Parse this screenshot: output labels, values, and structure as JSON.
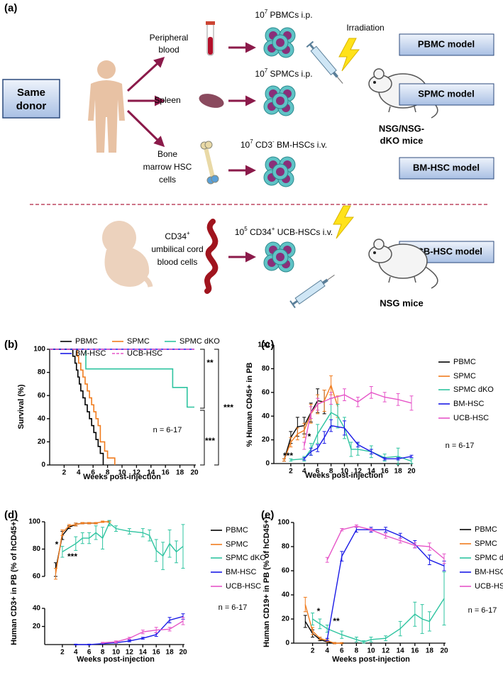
{
  "panel_labels": [
    "(a)",
    "(b)",
    "(c)",
    "(d)",
    "(e)"
  ],
  "diagram": {
    "donor": [
      "Same",
      "donor"
    ],
    "sources": [
      [
        "Peripheral",
        "blood"
      ],
      [
        "Spleen"
      ],
      [
        "Bone",
        "marrow HSC",
        "cells"
      ]
    ],
    "doses": [
      [
        "10",
        "7",
        " PBMCs i.p."
      ],
      [
        "10",
        "7",
        " SPMCs i.p."
      ],
      [
        "10",
        "7",
        " CD3",
        "-",
        " BM-HSCs i.v."
      ]
    ],
    "irradiation": "Irradiation",
    "mice_label": [
      "NSG/NSG-",
      "dKO mice"
    ],
    "models": [
      "PBMC model",
      "SPMC model",
      "BM-HSC model",
      "UCB-HSC model"
    ],
    "ucb_source": [
      [
        "CD34",
        "+"
      ],
      [
        "umbilical cord"
      ],
      [
        "blood cells"
      ]
    ],
    "ucb_dose": [
      "10",
      "5",
      " CD34",
      "+",
      " UCB-HSCs i.v."
    ],
    "nsg_label": "NSG mice"
  },
  "chart_data": [
    {
      "type": "step",
      "xlabel": "Weeks post-injection",
      "ylabel": "Survival (%)",
      "xlim": [
        0,
        20
      ],
      "xticks": [
        2,
        4,
        6,
        8,
        10,
        12,
        14,
        16,
        18,
        20
      ],
      "ylim": [
        0,
        100
      ],
      "yticks": [
        0,
        20,
        40,
        60,
        80,
        100
      ],
      "annotations": [
        "**",
        "***",
        "***",
        "n = 6-17"
      ],
      "series": [
        {
          "name": "PBMC",
          "color": "#000000",
          "x": [
            0,
            3.2,
            3.5,
            3.7,
            3.9,
            4.1,
            4.3,
            4.6,
            4.9,
            5.2,
            5.5,
            5.8,
            6.1,
            6.4,
            6.7,
            7.0,
            7.4
          ],
          "values": [
            100,
            94,
            88,
            82,
            76,
            70,
            64,
            58,
            52,
            46,
            40,
            34,
            28,
            22,
            16,
            10,
            0
          ]
        },
        {
          "name": "SPMC",
          "color": "#f07c1e",
          "x": [
            0,
            3.8,
            4.0,
            4.3,
            4.6,
            4.9,
            5.2,
            5.5,
            5.8,
            6.1,
            6.4,
            6.7,
            7.0,
            7.6,
            8.0,
            9.0
          ],
          "values": [
            100,
            94,
            88,
            82,
            76,
            70,
            64,
            58,
            52,
            46,
            40,
            34,
            20,
            12,
            6,
            0
          ]
        },
        {
          "name": "SPMC dKO",
          "color": "#2ec4a0",
          "x": [
            0,
            5,
            17,
            19,
            20
          ],
          "values": [
            100,
            83,
            67,
            50,
            50
          ]
        },
        {
          "name": "BM-HSC",
          "color": "#1a1ae6",
          "x": [
            0,
            20
          ],
          "values": [
            100,
            100
          ]
        },
        {
          "name": "UCB-HSC",
          "color": "#e655c8",
          "dash": true,
          "x": [
            0,
            20
          ],
          "values": [
            100,
            100
          ]
        }
      ]
    },
    {
      "type": "line",
      "xlabel": "Weeks post-injection",
      "ylabel": "% Human CD45+ in PB",
      "xlim": [
        0,
        20
      ],
      "xticks": [
        2,
        4,
        6,
        8,
        10,
        12,
        14,
        16,
        18,
        20
      ],
      "ylim": [
        0,
        100
      ],
      "yticks": [
        0,
        20,
        40,
        60,
        80,
        100
      ],
      "annotations": [
        "***",
        "*",
        "n = 6-17"
      ],
      "series": [
        {
          "name": "PBMC",
          "color": "#000000",
          "x": [
            1,
            2,
            3,
            4,
            5,
            6,
            7
          ],
          "values": [
            3,
            22,
            31,
            32,
            43,
            53,
            52
          ],
          "errors": [
            1,
            5,
            8,
            7,
            8,
            10,
            10
          ]
        },
        {
          "name": "SPMC",
          "color": "#f07c1e",
          "x": [
            1,
            2,
            3,
            4,
            5,
            6,
            7,
            8,
            9
          ],
          "values": [
            3,
            18,
            25,
            28,
            42,
            50,
            53,
            66,
            48
          ],
          "errors": [
            1,
            4,
            5,
            6,
            8,
            8,
            9,
            8,
            9
          ]
        },
        {
          "name": "SPMC dKO",
          "color": "#2ec4a0",
          "x": [
            2,
            4,
            5,
            6,
            8,
            9,
            10,
            11,
            12,
            14,
            16,
            18,
            20
          ],
          "values": [
            3,
            4,
            12,
            25,
            43,
            40,
            30,
            12,
            12,
            10,
            5,
            6,
            2
          ],
          "errors": [
            1,
            2,
            5,
            8,
            12,
            10,
            9,
            6,
            5,
            5,
            3,
            7,
            2
          ]
        },
        {
          "name": "BM-HSC",
          "color": "#1a1ae6",
          "x": [
            4,
            5,
            6,
            7,
            8,
            10,
            12,
            14,
            16,
            18,
            20
          ],
          "values": [
            4,
            10,
            13,
            22,
            32,
            30,
            16,
            10,
            4,
            4,
            6
          ],
          "errors": [
            1,
            3,
            3,
            5,
            5,
            6,
            2,
            2,
            1,
            1,
            1
          ]
        },
        {
          "name": "UCB-HSC",
          "color": "#e655c8",
          "x": [
            4,
            5,
            6,
            8,
            10,
            12,
            14,
            16,
            18,
            20
          ],
          "values": [
            15,
            43,
            50,
            55,
            58,
            52,
            60,
            56,
            54,
            51
          ],
          "errors": [
            3,
            5,
            5,
            5,
            5,
            4,
            5,
            4,
            5,
            6
          ]
        }
      ]
    },
    {
      "type": "line",
      "xlabel": "Weeks post-injection",
      "ylabel": "Human CD3+ in PB (% of hCD45+)",
      "xlim": [
        0,
        20
      ],
      "xticks": [
        2,
        4,
        6,
        8,
        10,
        12,
        14,
        16,
        18,
        20
      ],
      "ylim": [
        0,
        40
      ],
      "yticks": [
        20,
        40
      ],
      "ylim_upper": [
        60,
        100
      ],
      "yticks_upper": [
        60,
        80,
        100
      ],
      "annotations": [
        "*",
        "***",
        "n = 6-17"
      ],
      "series": [
        {
          "name": "PBMC",
          "color": "#000000",
          "x": [
            1,
            2,
            3,
            4,
            5,
            6,
            7
          ],
          "values": [
            65,
            90,
            96,
            98,
            99,
            99,
            99
          ],
          "errors": [
            5,
            3,
            1,
            1,
            0.5,
            0.5,
            0.5
          ]
        },
        {
          "name": "SPMC",
          "color": "#f07c1e",
          "x": [
            1,
            2,
            3,
            4,
            5,
            6,
            7,
            8,
            9
          ],
          "values": [
            62,
            92,
            97,
            98,
            99,
            99,
            99,
            100,
            100
          ],
          "errors": [
            4,
            2,
            1,
            1,
            0.5,
            0.5,
            0.5,
            0.5,
            0.5
          ]
        },
        {
          "name": "SPMC dKO",
          "color": "#2ec4a0",
          "x": [
            2,
            4,
            5,
            6,
            7,
            8,
            9,
            10,
            12,
            14,
            15,
            16,
            17,
            18,
            19,
            20
          ],
          "values": [
            78,
            84,
            88,
            88,
            92,
            88,
            99,
            95,
            93,
            92,
            90,
            79,
            75,
            84,
            78,
            82
          ],
          "errors": [
            4,
            5,
            4,
            4,
            5,
            8,
            2,
            2,
            2,
            3,
            4,
            8,
            10,
            10,
            8,
            16
          ]
        },
        {
          "name": "BM-HSC",
          "color": "#1a1ae6",
          "x": [
            4,
            6,
            8,
            10,
            12,
            14,
            16,
            18,
            20
          ],
          "values": [
            0,
            0,
            1,
            2,
            4,
            7,
            11,
            27,
            31
          ],
          "errors": [
            0.5,
            0.5,
            0.5,
            0.5,
            1,
            1,
            2,
            3,
            3
          ]
        },
        {
          "name": "UCB-HSC",
          "color": "#e655c8",
          "x": [
            8,
            10,
            12,
            14,
            16,
            18,
            20
          ],
          "values": [
            2,
            3,
            7,
            14,
            16,
            17,
            26
          ],
          "errors": [
            0.5,
            1,
            1,
            2,
            3,
            2,
            4
          ]
        }
      ]
    },
    {
      "type": "line",
      "xlabel": "Weeks post-injection",
      "ylabel": "Human CD19+ in PB (% of hCD45+)",
      "xlim": [
        0,
        20
      ],
      "xticks": [
        2,
        4,
        6,
        8,
        10,
        12,
        14,
        16,
        18,
        20
      ],
      "ylim": [
        0,
        100
      ],
      "yticks": [
        0,
        20,
        40,
        60,
        80,
        100
      ],
      "annotations": [
        "*",
        "**",
        "n = 6-17"
      ],
      "series": [
        {
          "name": "PBMC",
          "color": "#000000",
          "x": [
            1,
            2,
            3,
            4,
            5
          ],
          "values": [
            18,
            8,
            3,
            1,
            0
          ],
          "errors": [
            5,
            3,
            1,
            1,
            0.5
          ]
        },
        {
          "name": "SPMC",
          "color": "#f07c1e",
          "x": [
            1,
            2,
            3,
            4,
            5,
            6
          ],
          "values": [
            32,
            10,
            4,
            2,
            0,
            0
          ],
          "errors": [
            6,
            3,
            1,
            1,
            0.5,
            0.5
          ]
        },
        {
          "name": "SPMC dKO",
          "color": "#2ec4a0",
          "x": [
            2,
            3,
            4,
            6,
            8,
            9,
            10,
            12,
            14,
            16,
            17,
            18,
            20
          ],
          "values": [
            20,
            16,
            12,
            7,
            3,
            1,
            3,
            4,
            12,
            24,
            20,
            18,
            37
          ],
          "errors": [
            5,
            4,
            3,
            3,
            2,
            1,
            2,
            2,
            6,
            10,
            12,
            8,
            22
          ]
        },
        {
          "name": "BM-HSC",
          "color": "#1a1ae6",
          "x": [
            4,
            6,
            8,
            10,
            12,
            14,
            16,
            18,
            20
          ],
          "values": [
            3,
            72,
            94,
            94,
            94,
            89,
            82,
            69,
            64
          ],
          "errors": [
            1,
            4,
            2,
            2,
            2,
            2,
            3,
            4,
            4
          ]
        },
        {
          "name": "UCB-HSC",
          "color": "#e655c8",
          "x": [
            4,
            6,
            8,
            10,
            12,
            14,
            16,
            18,
            20
          ],
          "values": [
            69,
            94,
            97,
            94,
            89,
            85,
            81,
            80,
            70
          ],
          "errors": [
            2,
            1,
            1,
            1,
            2,
            2,
            2,
            3,
            4
          ]
        }
      ]
    }
  ]
}
